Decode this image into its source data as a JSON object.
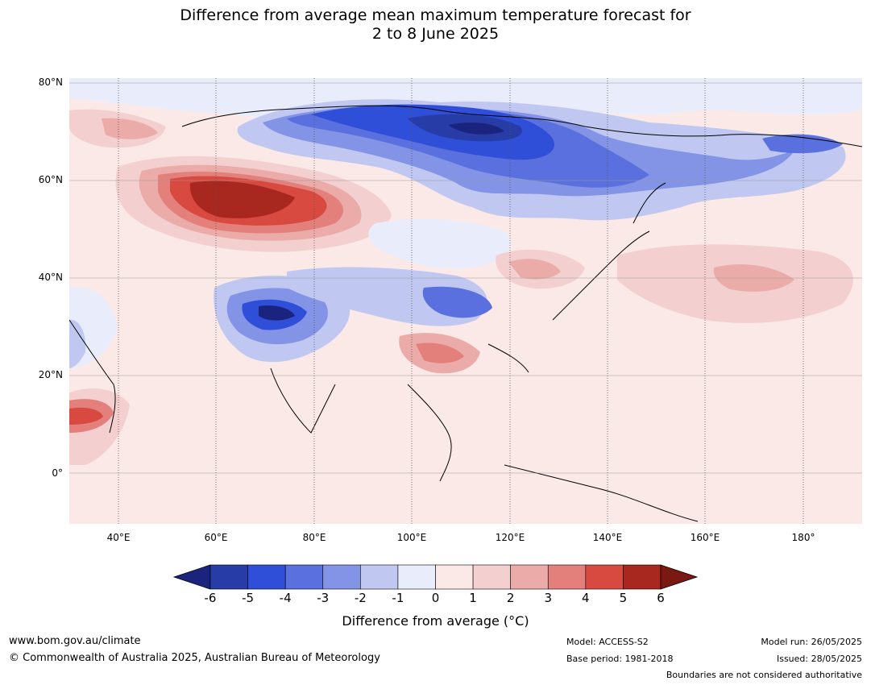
{
  "title": {
    "line1": "Difference from average mean maximum temperature forecast for",
    "line2": "2 to 8 June 2025"
  },
  "map": {
    "lat_labels": [
      "80°N",
      "60°N",
      "40°N",
      "20°N",
      "0°"
    ],
    "lon_labels": [
      "40°E",
      "60°E",
      "80°E",
      "100°E",
      "120°E",
      "140°E",
      "160°E",
      "180°"
    ]
  },
  "colorbar": {
    "label": "Difference from average (°C)",
    "ticks": [
      "-6",
      "-5",
      "-4",
      "-3",
      "-2",
      "-1",
      "0",
      "1",
      "2",
      "3",
      "4",
      "5",
      "6"
    ],
    "colors": [
      "#1a237e",
      "#283ca8",
      "#2f4fd8",
      "#5a70de",
      "#8394e6",
      "#c0c8f2",
      "#e9ecfa",
      "#fbe9e8",
      "#f3d0cf",
      "#ebaca9",
      "#e3807c",
      "#d84a40",
      "#a8281f",
      "#7a1812"
    ]
  },
  "footer": {
    "website": "www.bom.gov.au/climate",
    "copyright": "© Commonwealth of Australia 2025, Australian Bureau of Meteorology",
    "model": "Model: ACCESS-S2",
    "base_period": "Base period: 1981-2018",
    "model_run": "Model run: 26/05/2025",
    "issued": "Issued: 28/05/2025",
    "boundaries": "Boundaries are not considered authoritative"
  }
}
